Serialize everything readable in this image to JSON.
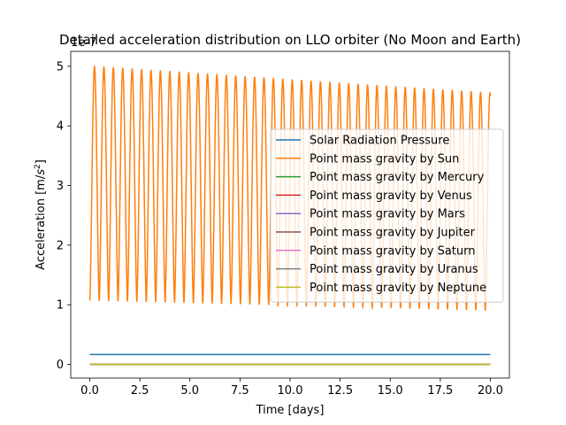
{
  "chart_data": {
    "type": "line",
    "title": "Detailed acceleration distribution on LLO orbiter (No Moon and Earth)",
    "xlabel": "Time [days]",
    "ylabel_prefix": "Acceleration [m/",
    "ylabel_base": "s",
    "ylabel_sup": "2",
    "ylabel_suffix": "]",
    "offset_text": "1e-7",
    "xlim": [
      -0.95,
      20.95
    ],
    "ylim": [
      -0.23,
      5.25
    ],
    "xticks": [
      0,
      2.5,
      5,
      7.5,
      10,
      12.5,
      15,
      17.5,
      20
    ],
    "xtick_labels": [
      "0.0",
      "2.5",
      "5.0",
      "7.5",
      "10.0",
      "12.5",
      "15.0",
      "17.5",
      "20.0"
    ],
    "yticks": [
      0,
      1,
      2,
      3,
      4,
      5
    ],
    "ytick_labels": [
      "0",
      "1",
      "2",
      "3",
      "4",
      "5"
    ],
    "legend_position": "center-right",
    "sun_series": {
      "period_days": 0.4701,
      "start_phase_days": 0.0,
      "max_start": 5.0,
      "max_end": 4.55,
      "min_start": 1.07,
      "min_end": 0.9
    },
    "series": [
      {
        "name": "Solar Radiation Pressure",
        "color": "#1f77b4",
        "kind": "constant",
        "value": 0.165
      },
      {
        "name": "Point mass gravity by Sun",
        "color": "#ff7f0e",
        "kind": "oscillating"
      },
      {
        "name": "Point mass gravity by Mercury",
        "color": "#2ca02c",
        "kind": "constant",
        "value": 0.0
      },
      {
        "name": "Point mass gravity by Venus",
        "color": "#d62728",
        "kind": "constant",
        "value": 0.0
      },
      {
        "name": "Point mass gravity by Mars",
        "color": "#9467bd",
        "kind": "constant",
        "value": 0.0
      },
      {
        "name": "Point mass gravity by Jupiter",
        "color": "#8c564b",
        "kind": "constant",
        "value": 0.0
      },
      {
        "name": "Point mass gravity by Saturn",
        "color": "#e377c2",
        "kind": "constant",
        "value": 0.0
      },
      {
        "name": "Point mass gravity by Uranus",
        "color": "#7f7f7f",
        "kind": "constant",
        "value": 0.0
      },
      {
        "name": "Point mass gravity by Neptune",
        "color": "#bcbd22",
        "kind": "constant",
        "value": 0.0
      }
    ],
    "x_start": 0.0,
    "x_end": 20.0,
    "grid": false
  }
}
